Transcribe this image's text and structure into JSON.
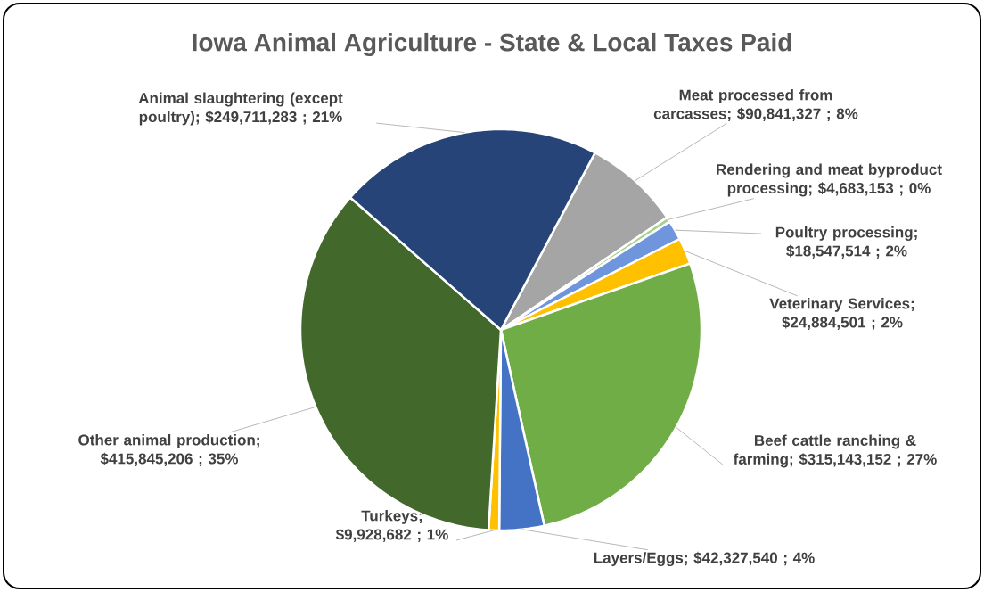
{
  "chart_data": {
    "type": "pie",
    "title": "Iowa Animal Agriculture - State & Local Taxes Paid",
    "categories": [
      "Meat processed from carcasses",
      "Rendering and meat byproduct processing",
      "Poultry processing",
      "Veterinary Services",
      "Beef cattle ranching & farming",
      "Layers/Eggs",
      "Turkeys",
      "Other animal production",
      "Animal slaughtering (except poultry)"
    ],
    "values": [
      90841327,
      4683153,
      18547514,
      24884501,
      315143152,
      42327540,
      9928682,
      415845206,
      249711283
    ],
    "value_labels": [
      "; $90,841,327 ; 8%",
      "; $4,683,153 ; 0%",
      "; $18,547,514 ; 2%",
      "; $24,884,501 ; 2%",
      "; $315,143,152 ; 27%",
      "; $42,327,540 ; 4%",
      "; $9,928,682 ; 1%",
      "; $415,845,206 ; 35%",
      "; $249,711,283 ; 21%"
    ],
    "colors": [
      "#a5a5a5",
      "#a9d18e",
      "#6f96dc",
      "#ffc000",
      "#70ad47",
      "#4472c4",
      "#ffc000",
      "#43682b",
      "#264478"
    ]
  }
}
